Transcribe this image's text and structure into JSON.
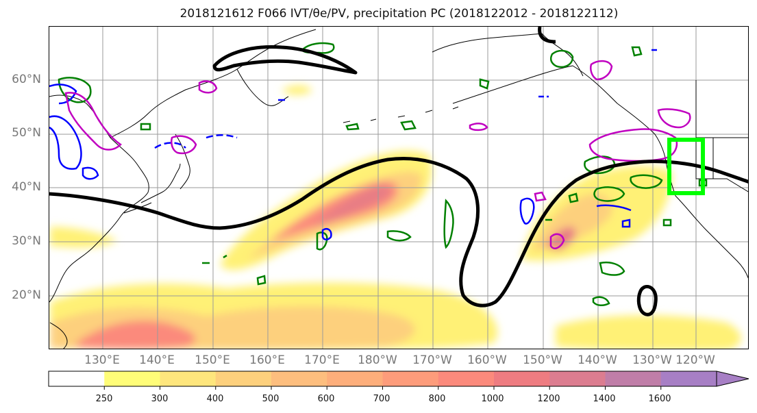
{
  "title": "2018121612 F066 IVT/θe/PV, precipitation PC (2018122012 - 2018122112)",
  "lat_labels": [
    "60°N",
    "50°N",
    "40°N",
    "30°N",
    "20°N"
  ],
  "lon_labels": [
    "130°E",
    "140°E",
    "150°E",
    "160°E",
    "170°E",
    "180°W",
    "170°W",
    "160°W",
    "150°W",
    "140°W",
    "130°W",
    "120°W"
  ],
  "colorbar": {
    "ticks": [
      "250",
      "300",
      "400",
      "500",
      "600",
      "700",
      "800",
      "1000",
      "1200",
      "1400",
      "1600"
    ],
    "colors": [
      "#ffffff",
      "#fffd78",
      "#fee67d",
      "#fdd07d",
      "#fdbe7e",
      "#fdae7b",
      "#fd9c7b",
      "#fb8a7c",
      "#ee7c81",
      "#dc7d90",
      "#c07ea8",
      "#a77fc5"
    ]
  },
  "colors": {
    "ivt_fill_low": "#fff176",
    "ivt_fill_high": "#e77d85",
    "theta_contour": "#000000",
    "pv_positive": "#008000",
    "pv_negative": "#0000ff",
    "precip_contour": "#c000c0",
    "box": "#00ff00"
  }
}
